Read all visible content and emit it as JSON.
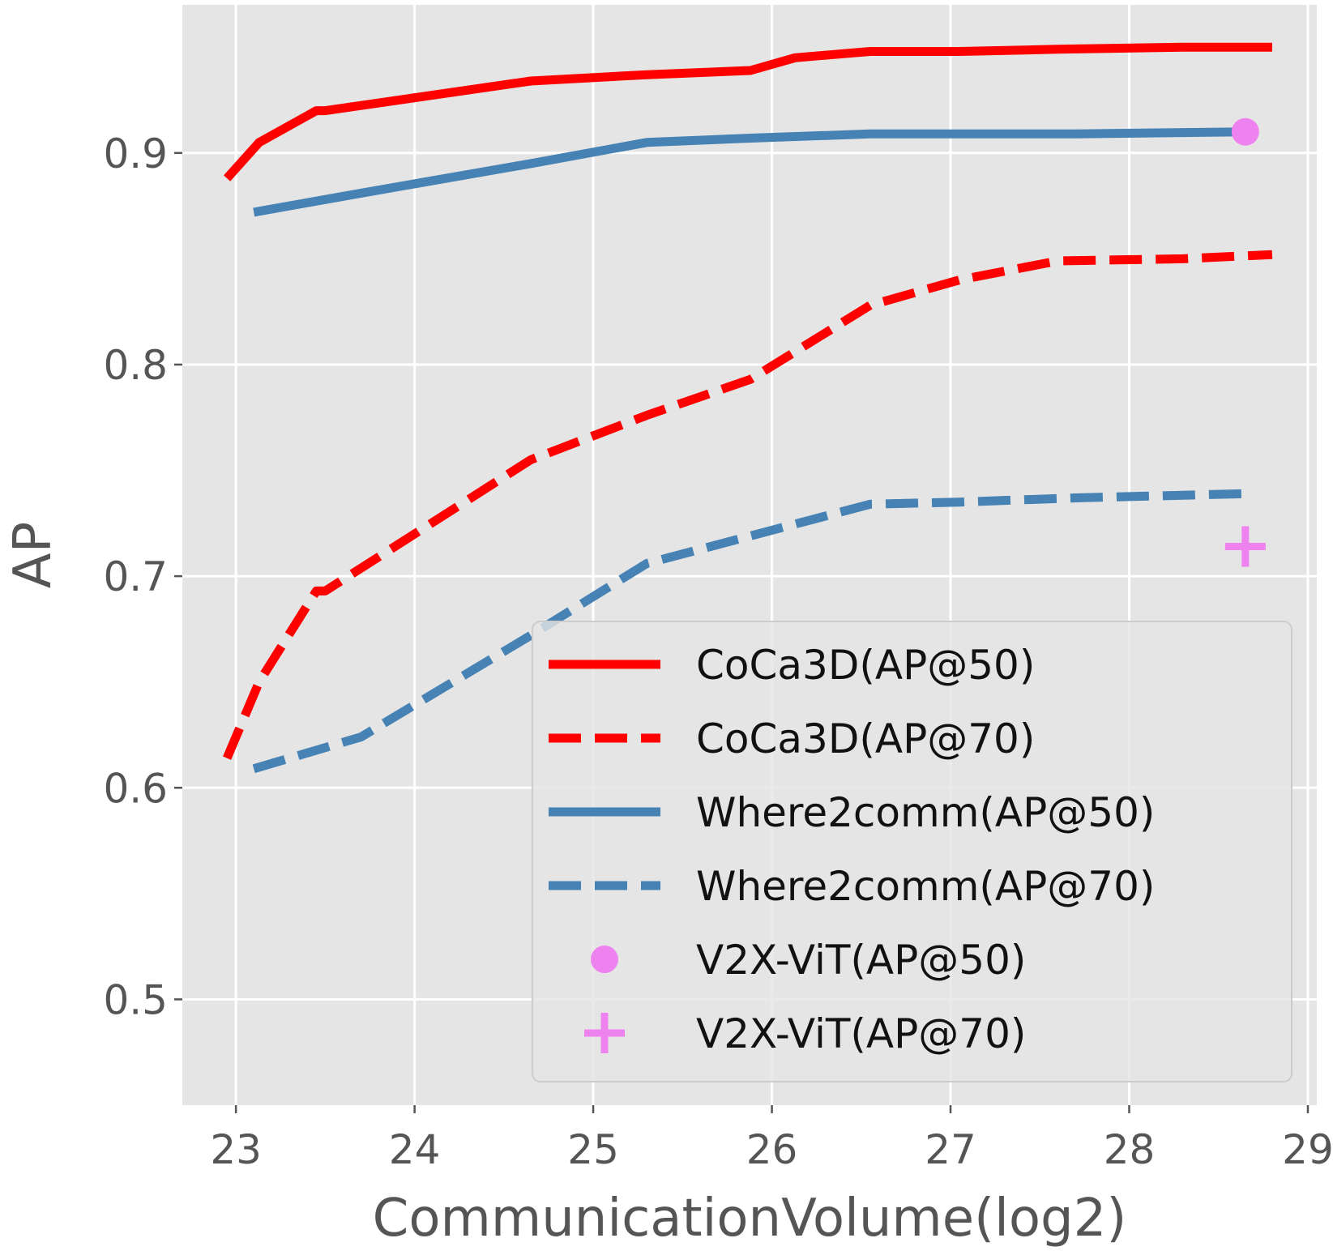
{
  "chart_data": {
    "type": "line",
    "title": "",
    "xlabel": "CommunicationVolume(log2)",
    "ylabel": "AP",
    "xlim": [
      22.7,
      29.05
    ],
    "ylim": [
      0.45,
      0.97
    ],
    "xticks": [
      23,
      24,
      25,
      26,
      27,
      28,
      29
    ],
    "yticks": [
      0.5,
      0.6,
      0.7,
      0.8,
      0.9
    ],
    "xtick_labels": [
      "23",
      "24",
      "25",
      "26",
      "27",
      "28",
      "29"
    ],
    "ytick_labels": [
      "0.5",
      "0.6",
      "0.7",
      "0.8",
      "0.9"
    ],
    "grid": true,
    "legend_position": "bottom-right",
    "series": [
      {
        "name": "CoCa3D(AP@50)",
        "style": "solid",
        "color": "#ff0000",
        "x": [
          22.95,
          23.13,
          23.45,
          23.5,
          24.65,
          25.3,
          25.88,
          26.13,
          26.55,
          27.05,
          27.6,
          28.3,
          28.8
        ],
        "y": [
          0.888,
          0.905,
          0.92,
          0.92,
          0.934,
          0.937,
          0.939,
          0.945,
          0.948,
          0.948,
          0.949,
          0.95,
          0.95
        ]
      },
      {
        "name": "CoCa3D(AP@70)",
        "style": "dashed",
        "color": "#ff0000",
        "x": [
          22.95,
          23.13,
          23.45,
          23.5,
          24.65,
          25.3,
          25.88,
          26.55,
          27.05,
          27.6,
          28.3,
          28.8
        ],
        "y": [
          0.614,
          0.65,
          0.693,
          0.693,
          0.755,
          0.776,
          0.793,
          0.828,
          0.84,
          0.849,
          0.85,
          0.852
        ]
      },
      {
        "name": "Where2comm(AP@50)",
        "style": "solid",
        "color": "#4682b4",
        "x": [
          23.1,
          23.7,
          24.65,
          25.3,
          25.88,
          26.55,
          27.05,
          27.7,
          28.65
        ],
        "y": [
          0.872,
          0.881,
          0.895,
          0.905,
          0.907,
          0.909,
          0.909,
          0.909,
          0.91
        ]
      },
      {
        "name": "Where2comm(AP@70)",
        "style": "dashed",
        "color": "#4682b4",
        "x": [
          23.1,
          23.7,
          24.65,
          25.3,
          25.88,
          26.55,
          27.05,
          27.7,
          28.65
        ],
        "y": [
          0.609,
          0.624,
          0.672,
          0.706,
          0.719,
          0.734,
          0.735,
          0.737,
          0.739
        ]
      },
      {
        "name": "V2X-ViT(AP@50)",
        "style": "marker-circle",
        "color": "#ee82ee",
        "x": [
          28.65
        ],
        "y": [
          0.91
        ]
      },
      {
        "name": "V2X-ViT(AP@70)",
        "style": "marker-plus",
        "color": "#ee82ee",
        "x": [
          28.65
        ],
        "y": [
          0.714
        ]
      }
    ]
  },
  "colors": {
    "plot_background": "#e5e5e5",
    "grid": "#ffffff",
    "legend_background": "#e5e5e5",
    "legend_border": "#cccccc"
  }
}
